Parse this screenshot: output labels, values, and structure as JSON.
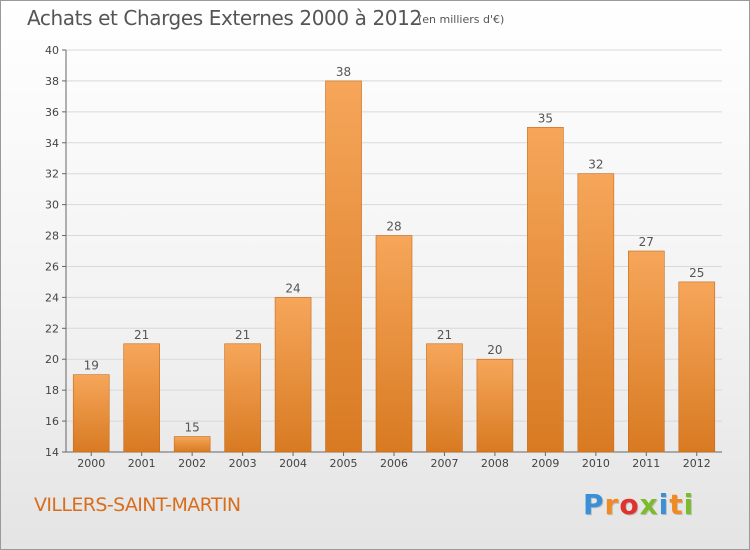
{
  "title": "Achats et Charges Externes 2000 à 2012",
  "subtitle": "(en milliers d'€)",
  "city": "VILLERS-SAINT-MARTIN",
  "logo": {
    "letters": [
      "P",
      "r",
      "o",
      "x",
      "i",
      "t",
      "i"
    ],
    "colors": [
      "#3b8fd6",
      "#f08a24",
      "#e2322d",
      "#7dbb2e",
      "#3b8fd6",
      "#f08a24",
      "#7dbb2e"
    ]
  },
  "chart_data": {
    "type": "bar",
    "categories": [
      "2000",
      "2001",
      "2002",
      "2003",
      "2004",
      "2005",
      "2006",
      "2007",
      "2008",
      "2009",
      "2010",
      "2011",
      "2012"
    ],
    "values": [
      19,
      21,
      15,
      21,
      24,
      38,
      28,
      21,
      20,
      35,
      32,
      27,
      25
    ],
    "ylim": [
      14,
      40
    ],
    "yticks": [
      14,
      16,
      18,
      20,
      22,
      24,
      26,
      28,
      30,
      32,
      34,
      36,
      38,
      40
    ],
    "grid": true,
    "colors": {
      "bar_light": "#f6a65a",
      "bar_dark": "#d87a22",
      "grid": "#d9d9d9"
    }
  }
}
